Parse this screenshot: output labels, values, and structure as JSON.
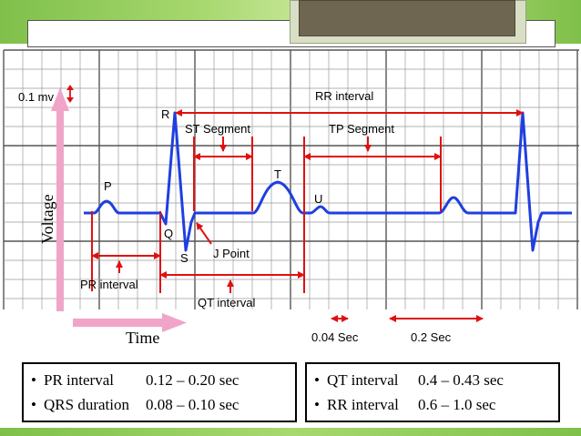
{
  "diagram": {
    "labels": {
      "scale_mv": "0.1 mv",
      "y_axis": "Voltage",
      "x_axis": "Time",
      "p_wave": "P",
      "r_wave": "R",
      "q_wave": "Q",
      "s_wave": "S",
      "t_wave": "T",
      "u_wave": "U",
      "st_segment": "ST Segment",
      "tp_segment": "TP Segment",
      "rr_interval": "RR interval",
      "pr_interval": "PR interval",
      "qt_interval": "QT interval",
      "j_point": "J Point",
      "scale_small": "0.04 Sec",
      "scale_large": "0.2 Sec"
    },
    "colors": {
      "trace": "#1f3fe0",
      "annotation": "#e01010",
      "axis_arrow": "#f0a4c8",
      "grid_minor": "#9a9a9a",
      "grid_major": "#555555"
    }
  },
  "legend": {
    "left": [
      {
        "bullet": "•",
        "name": "PR interval",
        "value": "0.12 – 0.20 sec"
      },
      {
        "bullet": "•",
        "name": "QRS duration",
        "value": "0.08 – 0.10 sec"
      }
    ],
    "right": [
      {
        "bullet": "•",
        "name": "QT interval",
        "value": "0.4 – 0.43 sec"
      },
      {
        "bullet": "•",
        "name": "RR interval",
        "value": "0.6 – 1.0   sec"
      }
    ]
  }
}
